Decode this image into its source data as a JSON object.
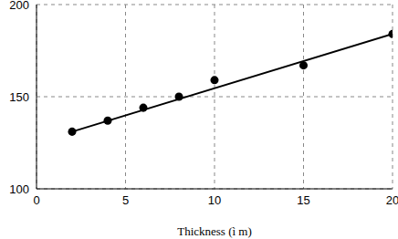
{
  "chart_data": {
    "type": "scatter",
    "x_label": "Thickness (ì m)",
    "xlim": [
      0,
      20
    ],
    "xticks": [
      0,
      5,
      10,
      15,
      20
    ],
    "ylim": [
      100,
      200
    ],
    "yticks": [
      100,
      150,
      200
    ],
    "grid": true,
    "series": [
      {
        "type": "scatter",
        "marker": "circle",
        "color": "#000000",
        "x": [
          2,
          4,
          6,
          8,
          10,
          15,
          20
        ],
        "values": [
          131,
          137,
          144,
          150,
          159,
          167,
          184
        ]
      },
      {
        "type": "line",
        "line_style": "solid",
        "color": "#000000",
        "x": [
          2,
          20
        ],
        "values": [
          131,
          184
        ]
      }
    ]
  }
}
